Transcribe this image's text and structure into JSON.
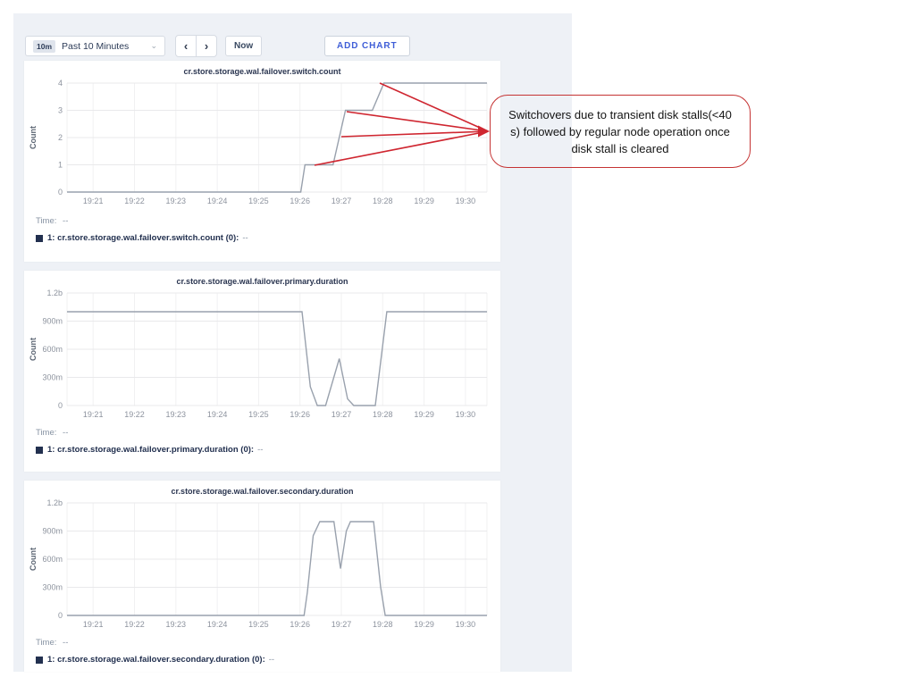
{
  "toolbar": {
    "range_badge": "10m",
    "range_label": "Past 10 Minutes",
    "now_label": "Now",
    "add_chart_label": "ADD CHART"
  },
  "icons": {
    "chevron_left": "‹",
    "chevron_right": "›",
    "chevron_down": "⌄"
  },
  "annotation": {
    "text": "Switchovers due to transient disk stalls(<40 s) followed by regular node operation once disk stall is cleared",
    "border_color": "#c53333",
    "arrow_color": "#cf2630"
  },
  "colors": {
    "panel_bg": "#eef1f6",
    "card_bg": "#ffffff",
    "series_line": "#99a1ad",
    "legend_navy": "#22304f",
    "accent_blue": "#3f5ed7",
    "annotation_red": "#cf2630"
  },
  "chart_data": [
    {
      "type": "line",
      "title": "cr.store.storage.wal.failover.switch.count",
      "ylabel": "Count",
      "xlim": [
        20.37,
        30.52
      ],
      "ylim": [
        0,
        4
      ],
      "yticks": [
        {
          "v": 4,
          "label": "4"
        },
        {
          "v": 3,
          "label": "3"
        },
        {
          "v": 2,
          "label": "2"
        },
        {
          "v": 1,
          "label": "1"
        },
        {
          "v": 0,
          "label": "0"
        }
      ],
      "xticks": [
        {
          "t": 21,
          "label": "19:21"
        },
        {
          "t": 22,
          "label": "19:22"
        },
        {
          "t": 23,
          "label": "19:23"
        },
        {
          "t": 24,
          "label": "19:24"
        },
        {
          "t": 25,
          "label": "19:25"
        },
        {
          "t": 26,
          "label": "19:26"
        },
        {
          "t": 27,
          "label": "19:27"
        },
        {
          "t": 28,
          "label": "19:28"
        },
        {
          "t": 29,
          "label": "19:29"
        },
        {
          "t": 30,
          "label": "19:30"
        }
      ],
      "points": [
        [
          20.37,
          0
        ],
        [
          26.02,
          0
        ],
        [
          26.12,
          1
        ],
        [
          26.8,
          1
        ],
        [
          27.1,
          3
        ],
        [
          27.75,
          3
        ],
        [
          28.03,
          4
        ],
        [
          30.52,
          4
        ]
      ],
      "legend": {
        "time_label": "Time:",
        "time_value": "--",
        "series_label": "1: cr.store.storage.wal.failover.switch.count (0):",
        "series_value": "--"
      }
    },
    {
      "type": "line",
      "title": "cr.store.storage.wal.failover.primary.duration",
      "ylabel": "Count",
      "xlim": [
        20.37,
        30.52
      ],
      "ylim": [
        0,
        1.2
      ],
      "yticks": [
        {
          "v": 1.2,
          "label": "1.2b"
        },
        {
          "v": 0.9,
          "label": "900m"
        },
        {
          "v": 0.6,
          "label": "600m"
        },
        {
          "v": 0.3,
          "label": "300m"
        },
        {
          "v": 0,
          "label": "0"
        }
      ],
      "xticks": [
        {
          "t": 21,
          "label": "19:21"
        },
        {
          "t": 22,
          "label": "19:22"
        },
        {
          "t": 23,
          "label": "19:23"
        },
        {
          "t": 24,
          "label": "19:24"
        },
        {
          "t": 25,
          "label": "19:25"
        },
        {
          "t": 26,
          "label": "19:26"
        },
        {
          "t": 27,
          "label": "19:27"
        },
        {
          "t": 28,
          "label": "19:28"
        },
        {
          "t": 29,
          "label": "19:29"
        },
        {
          "t": 30,
          "label": "19:30"
        }
      ],
      "points": [
        [
          20.37,
          1.0
        ],
        [
          26.05,
          1.0
        ],
        [
          26.25,
          0.2
        ],
        [
          26.42,
          0
        ],
        [
          26.62,
          0
        ],
        [
          26.95,
          0.5
        ],
        [
          27.15,
          0.07
        ],
        [
          27.3,
          0
        ],
        [
          27.82,
          0
        ],
        [
          28.1,
          1.0
        ],
        [
          30.52,
          1.0
        ]
      ],
      "legend": {
        "time_label": "Time:",
        "time_value": "--",
        "series_label": "1: cr.store.storage.wal.failover.primary.duration (0):",
        "series_value": "--"
      }
    },
    {
      "type": "line",
      "title": "cr.store.storage.wal.failover.secondary.duration",
      "ylabel": "Count",
      "xlim": [
        20.37,
        30.52
      ],
      "ylim": [
        0,
        1.2
      ],
      "yticks": [
        {
          "v": 1.2,
          "label": "1.2b"
        },
        {
          "v": 0.9,
          "label": "900m"
        },
        {
          "v": 0.6,
          "label": "600m"
        },
        {
          "v": 0.3,
          "label": "300m"
        },
        {
          "v": 0,
          "label": "0"
        }
      ],
      "xticks": [
        {
          "t": 21,
          "label": "19:21"
        },
        {
          "t": 22,
          "label": "19:22"
        },
        {
          "t": 23,
          "label": "19:23"
        },
        {
          "t": 24,
          "label": "19:24"
        },
        {
          "t": 25,
          "label": "19:25"
        },
        {
          "t": 26,
          "label": "19:26"
        },
        {
          "t": 27,
          "label": "19:27"
        },
        {
          "t": 28,
          "label": "19:28"
        },
        {
          "t": 29,
          "label": "19:29"
        },
        {
          "t": 30,
          "label": "19:30"
        }
      ],
      "points": [
        [
          20.37,
          0
        ],
        [
          26.1,
          0
        ],
        [
          26.18,
          0.25
        ],
        [
          26.32,
          0.85
        ],
        [
          26.48,
          1.0
        ],
        [
          26.82,
          1.0
        ],
        [
          26.98,
          0.5
        ],
        [
          27.12,
          0.9
        ],
        [
          27.22,
          1.0
        ],
        [
          27.78,
          1.0
        ],
        [
          27.95,
          0.3
        ],
        [
          28.06,
          0
        ],
        [
          30.52,
          0
        ]
      ],
      "legend": {
        "time_label": "Time:",
        "time_value": "--",
        "series_label": "1: cr.store.storage.wal.failover.secondary.duration (0):",
        "series_value": "--"
      }
    }
  ]
}
